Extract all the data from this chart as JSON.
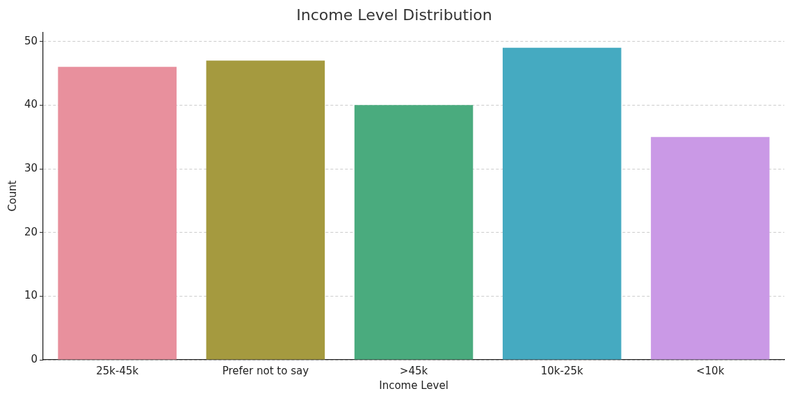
{
  "chart_data": {
    "type": "bar",
    "title": "Income Level Distribution",
    "xlabel": "Income Level",
    "ylabel": "Count",
    "categories": [
      "25k-45k",
      "Prefer not to say",
      ">45k",
      "10k-25k",
      "<10k"
    ],
    "values": [
      46,
      47,
      40,
      49,
      35
    ],
    "colors": [
      "#e8909d",
      "#a59a3f",
      "#4aab7e",
      "#45aac1",
      "#ca99e6"
    ],
    "ylim": [
      0,
      51.45
    ],
    "yticks": [
      0,
      10,
      20,
      30,
      40,
      50
    ],
    "grid": "y",
    "legend": false
  }
}
